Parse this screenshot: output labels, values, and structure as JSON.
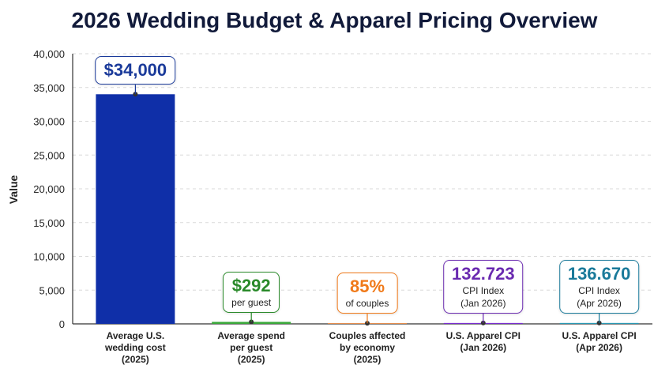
{
  "chart_data": {
    "type": "bar",
    "title": "2026 Wedding Budget & Apparel Pricing Overview",
    "y_label": "Value",
    "categories": [
      "Average U.S.\nwedding cost\n(2025)",
      "Average spend\nper guest\n(2025)",
      "Couples affected\nby economy\n(2025)",
      "U.S. Apparel CPI\n(Jan 2026)",
      "U.S. Apparel CPI\n(Apr 2026)"
    ],
    "values": [
      34000,
      292,
      85,
      132.723,
      136.67
    ],
    "value_labels": [
      "$34,000",
      "$292",
      "85%",
      "132.723",
      "136.670"
    ],
    "annotations": [
      null,
      "per guest",
      "of couples",
      "CPI Index\n(Jan 2026)",
      "CPI Index\n(Apr 2026)"
    ],
    "colors": [
      "#0f2fa8",
      "#3aa83a",
      "#f07820",
      "#7a2fd0",
      "#2a9ab5"
    ],
    "label_colors": [
      "#1a3a9a",
      "#2a8a2a",
      "#f07a1a",
      "#6a2ab0",
      "#1a7a9a"
    ],
    "ylim": [
      0,
      40000
    ],
    "yticks": [
      0,
      {
        "value": 5000,
        "label": "5,000"
      },
      {
        "value": 10000,
        "label": "10,000"
      },
      {
        "value": 15000,
        "label": "15,000"
      },
      {
        "value": 20000,
        "label": "20,000"
      },
      {
        "value": 25000,
        "label": "25,000"
      },
      {
        "value": 30000,
        "label": "30,000"
      },
      {
        "value": 35000,
        "label": "35,000"
      },
      {
        "value": 40000,
        "label": "40,000"
      }
    ],
    "grid": true
  }
}
